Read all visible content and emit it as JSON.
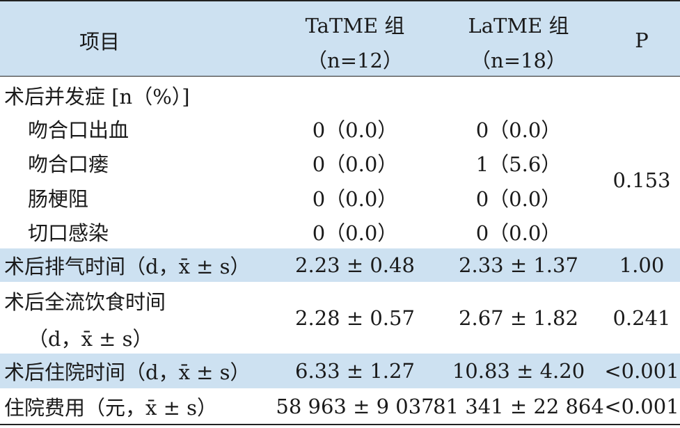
{
  "header": {
    "item": "项目",
    "groups": [
      {
        "name": "TaTME 组",
        "n": "（n=12）"
      },
      {
        "name": "LaTME 组",
        "n": "（n=18）"
      }
    ],
    "p": "P"
  },
  "complications": {
    "label": "术后并发症 [n（%）]",
    "p": "0.153",
    "items": [
      {
        "label": "吻合口出血",
        "values": [
          "0（0.0）",
          "0（0.0）"
        ]
      },
      {
        "label": "吻合口瘘",
        "values": [
          "0（0.0）",
          "1（5.6）"
        ]
      },
      {
        "label": "肠梗阻",
        "values": [
          "0（0.0）",
          "0（0.0）"
        ]
      },
      {
        "label": "切口感染",
        "values": [
          "0（0.0）",
          "0（0.0）"
        ]
      }
    ]
  },
  "rows": [
    {
      "label": [
        "术后排气时间（d，x̄ ± s）"
      ],
      "values": [
        "2.23 ± 0.48",
        "2.33 ± 1.37"
      ],
      "p": "1.00"
    },
    {
      "label": [
        "术后全流饮食时间",
        "（d，x̄ ± s）"
      ],
      "values": [
        "2.28 ± 0.57",
        "2.67 ± 1.82"
      ],
      "p": "0.241"
    },
    {
      "label": [
        "术后住院时间（d，x̄ ± s）"
      ],
      "values": [
        "6.33 ± 1.27",
        "10.83 ± 4.20"
      ],
      "p": "<0.001"
    },
    {
      "label": [
        "住院费用（元，x̄ ± s）"
      ],
      "values": [
        "58 963 ± 9 037",
        "81 341 ± 22 864"
      ],
      "p": "<0.001"
    }
  ]
}
